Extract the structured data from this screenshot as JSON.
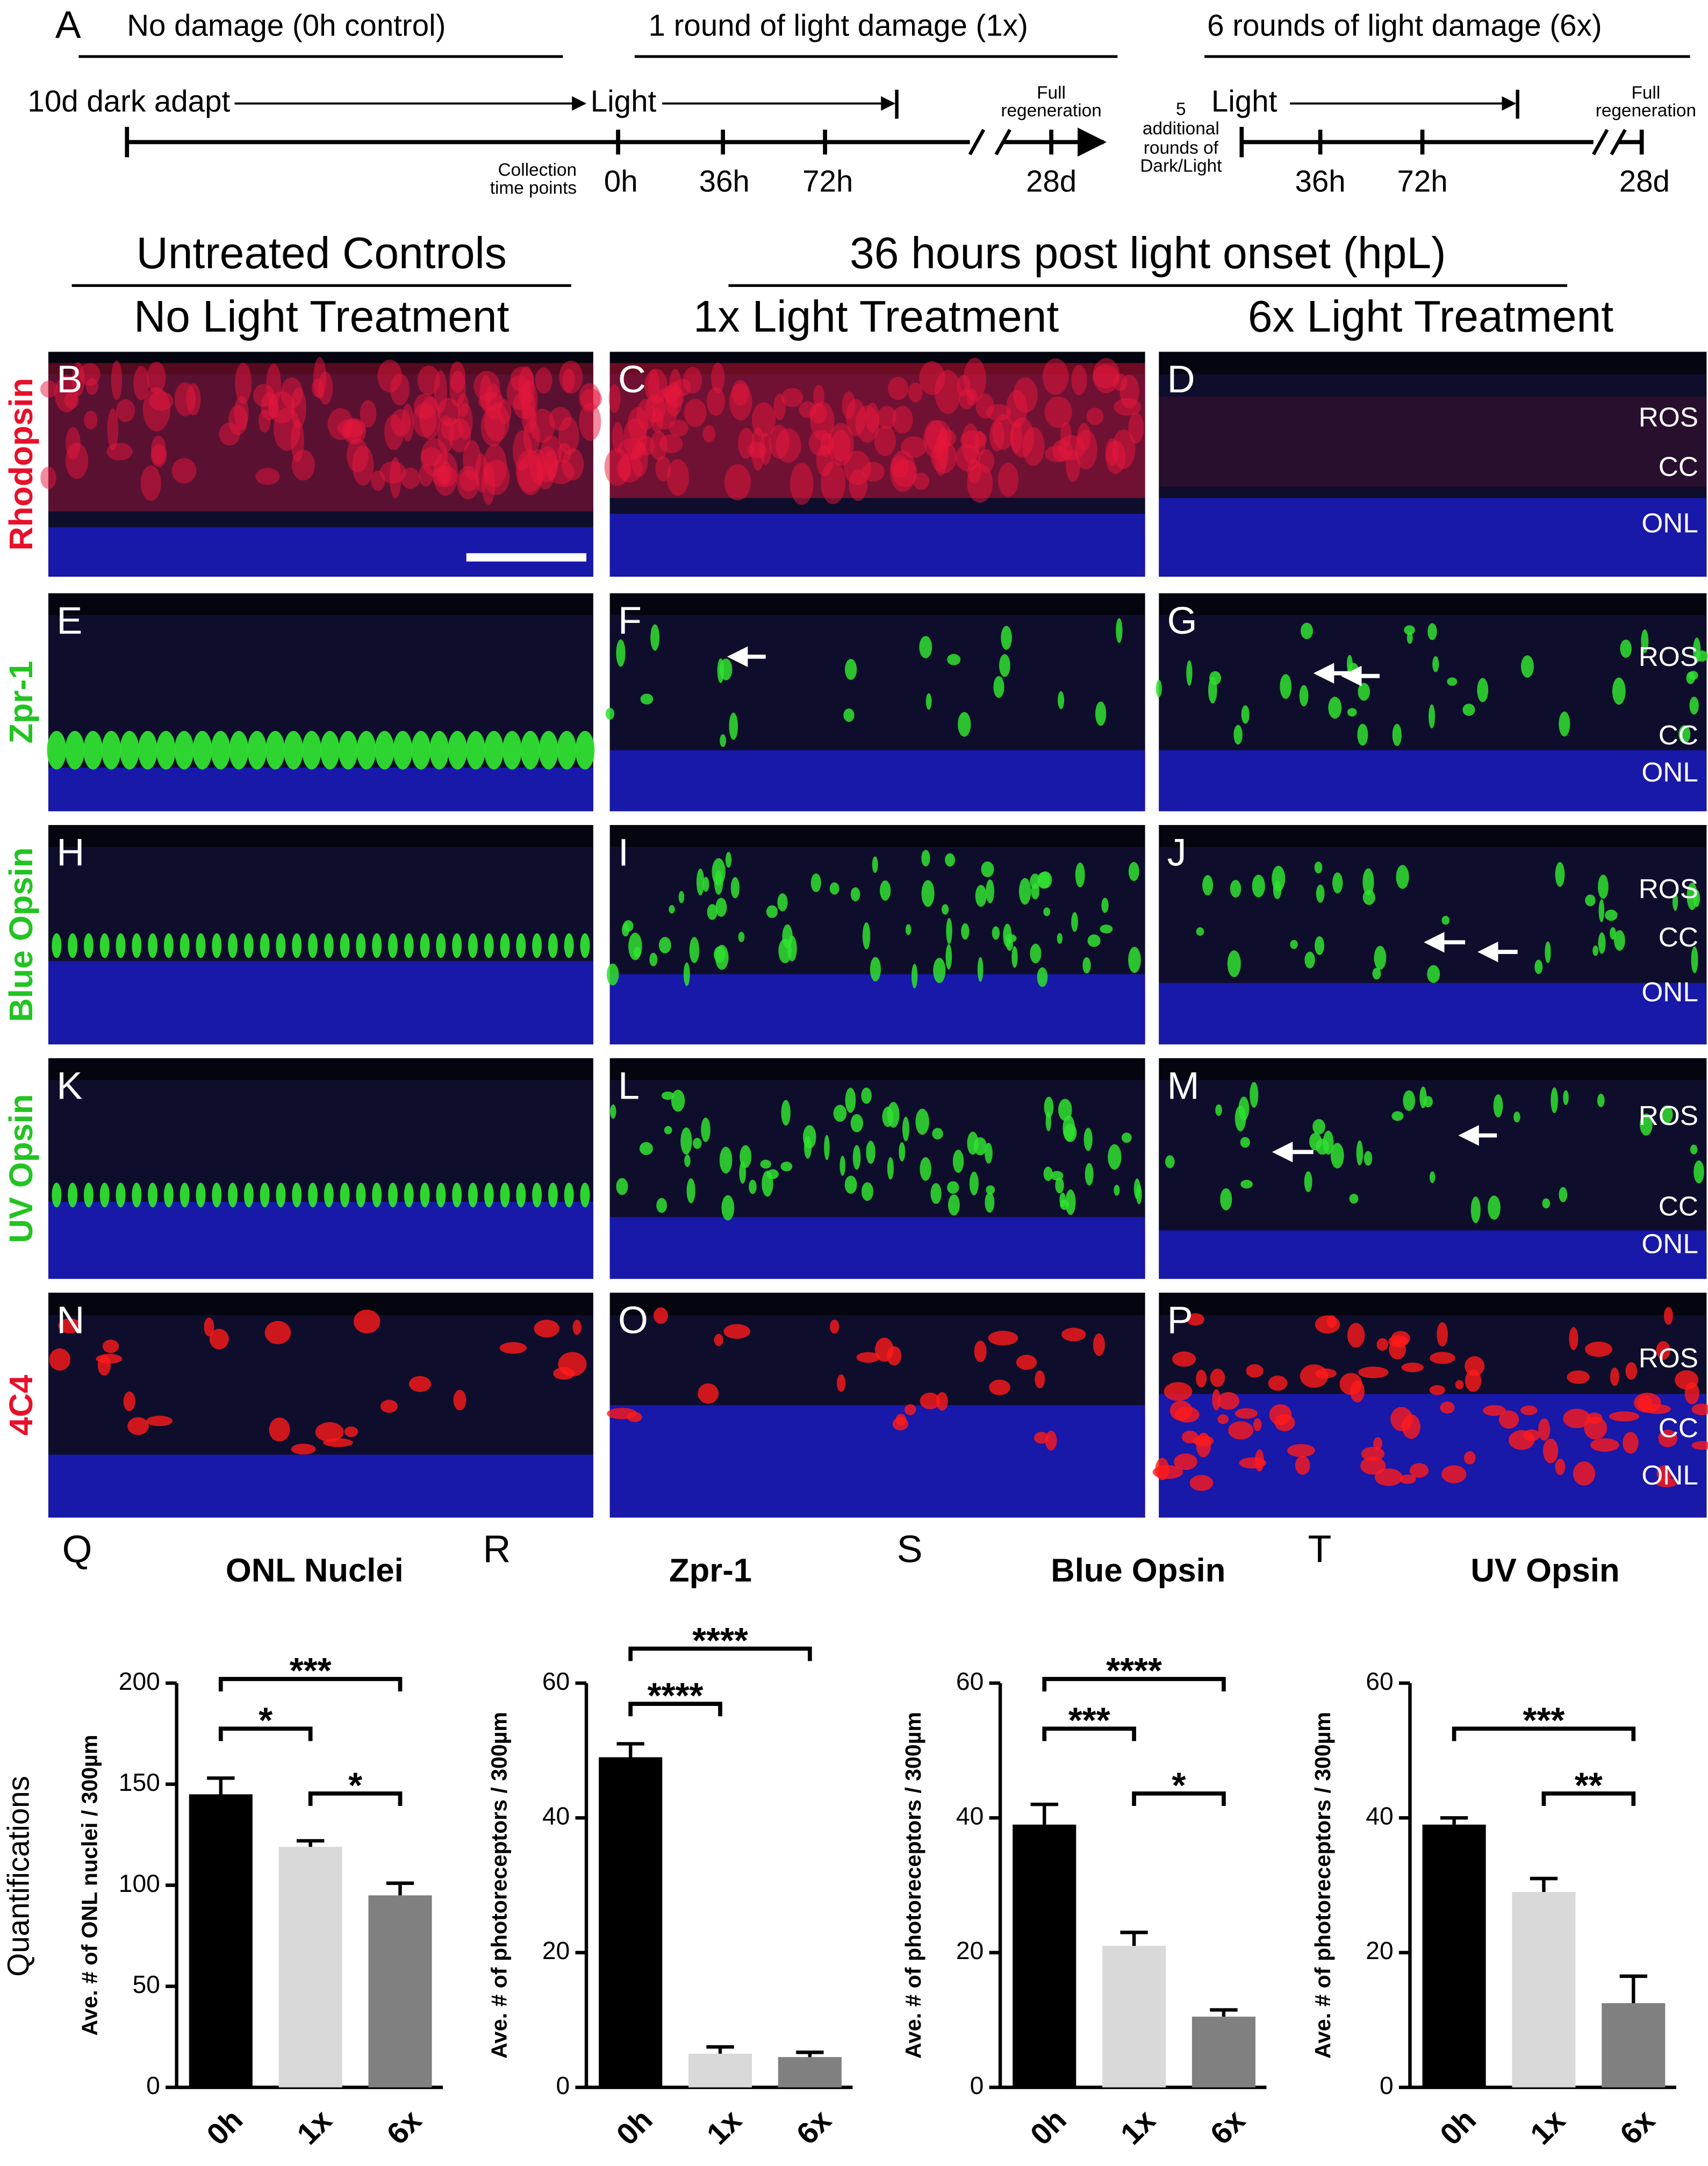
{
  "figure_label": "A",
  "timeline": {
    "sections": [
      "No damage (0h control)",
      "1 round of light damage (1x)",
      "6 rounds of light damage (6x)"
    ],
    "dark_adapt": "10d dark adapt",
    "light": [
      "Light",
      "Light"
    ],
    "collection": [
      "Collection",
      "time points"
    ],
    "times_left": [
      "0h",
      "36h",
      "72h",
      "28d"
    ],
    "full_regen": [
      [
        "Full",
        "regeneration"
      ],
      [
        "Full",
        "regeneration"
      ]
    ],
    "additional": [
      "5",
      "additional",
      "rounds of",
      "Dark/Light"
    ],
    "times_right": [
      "36h",
      "72h",
      "28d"
    ]
  },
  "headers": {
    "group1": "Untreated Controls",
    "group2": "36 hours post light onset (hpL)",
    "columns": [
      "No Light Treatment",
      "1x Light Treatment",
      "6x Light Treatment"
    ]
  },
  "panels": [
    {
      "label": "Rhodopsin",
      "letters": [
        "B",
        "C",
        "D"
      ],
      "layers": [
        "ROS",
        "CC",
        "ONL"
      ]
    },
    {
      "label": "Zpr-1",
      "letters": [
        "E",
        "F",
        "G"
      ],
      "layers": [
        "ROS",
        "CC",
        "ONL"
      ]
    },
    {
      "label": "Blue Opsin",
      "letters": [
        "H",
        "I",
        "J"
      ],
      "layers": [
        "ROS",
        "CC",
        "ONL"
      ]
    },
    {
      "label": "UV Opsin",
      "letters": [
        "K",
        "L",
        "M"
      ],
      "layers": [
        "ROS",
        "CC",
        "ONL"
      ]
    },
    {
      "label": "4C4",
      "letters": [
        "N",
        "O",
        "P"
      ],
      "layers": [
        "ROS",
        "CC",
        "ONL"
      ]
    }
  ],
  "quantifications_label": "Quantifications",
  "chart_data": [
    {
      "type": "bar",
      "panel_letter": "Q",
      "title": "ONL Nuclei",
      "ylabel": "Ave. # of ONL nuclei / 300µm",
      "categories": [
        "0h",
        "1x",
        "6x"
      ],
      "values": [
        145,
        119,
        95
      ],
      "errors": [
        8,
        3,
        6
      ],
      "colors": [
        "#000000",
        "#d9d9d9",
        "#808080"
      ],
      "ylim": [
        0,
        200
      ],
      "yticks": [
        0,
        50,
        100,
        150,
        200
      ],
      "significance": [
        {
          "between": [
            "0h",
            "6x"
          ],
          "label": "***"
        },
        {
          "between": [
            "0h",
            "1x"
          ],
          "label": "*"
        },
        {
          "between": [
            "1x",
            "6x"
          ],
          "label": "*"
        }
      ]
    },
    {
      "type": "bar",
      "panel_letter": "R",
      "title": "Zpr-1",
      "ylabel": "Ave. # of photoreceptors / 300µm",
      "categories": [
        "0h",
        "1x",
        "6x"
      ],
      "values": [
        49,
        5,
        4.5
      ],
      "errors": [
        2,
        1,
        0.7
      ],
      "colors": [
        "#000000",
        "#d9d9d9",
        "#808080"
      ],
      "ylim": [
        0,
        60
      ],
      "yticks": [
        0,
        20,
        40,
        60
      ],
      "significance": [
        {
          "between": [
            "0h",
            "6x"
          ],
          "label": "****"
        },
        {
          "between": [
            "0h",
            "1x"
          ],
          "label": "****"
        }
      ]
    },
    {
      "type": "bar",
      "panel_letter": "S",
      "title": "Blue Opsin",
      "ylabel": "Ave. # of photoreceptors / 300µm",
      "categories": [
        "0h",
        "1x",
        "6x"
      ],
      "values": [
        39,
        21,
        10.5
      ],
      "errors": [
        3,
        2,
        1
      ],
      "colors": [
        "#000000",
        "#d9d9d9",
        "#808080"
      ],
      "ylim": [
        0,
        60
      ],
      "yticks": [
        0,
        20,
        40,
        60
      ],
      "significance": [
        {
          "between": [
            "0h",
            "6x"
          ],
          "label": "****"
        },
        {
          "between": [
            "0h",
            "1x"
          ],
          "label": "***"
        },
        {
          "between": [
            "1x",
            "6x"
          ],
          "label": "*"
        }
      ]
    },
    {
      "type": "bar",
      "panel_letter": "T",
      "title": "UV Opsin",
      "ylabel": "Ave. # of photoreceptors / 300µm",
      "categories": [
        "0h",
        "1x",
        "6x"
      ],
      "values": [
        39,
        29,
        12.5
      ],
      "errors": [
        1,
        2,
        4
      ],
      "colors": [
        "#000000",
        "#d9d9d9",
        "#808080"
      ],
      "ylim": [
        0,
        60
      ],
      "yticks": [
        0,
        20,
        40,
        60
      ],
      "significance": [
        {
          "between": [
            "0h",
            "6x"
          ],
          "label": "***"
        },
        {
          "between": [
            "1x",
            "6x"
          ],
          "label": "**"
        }
      ]
    }
  ]
}
